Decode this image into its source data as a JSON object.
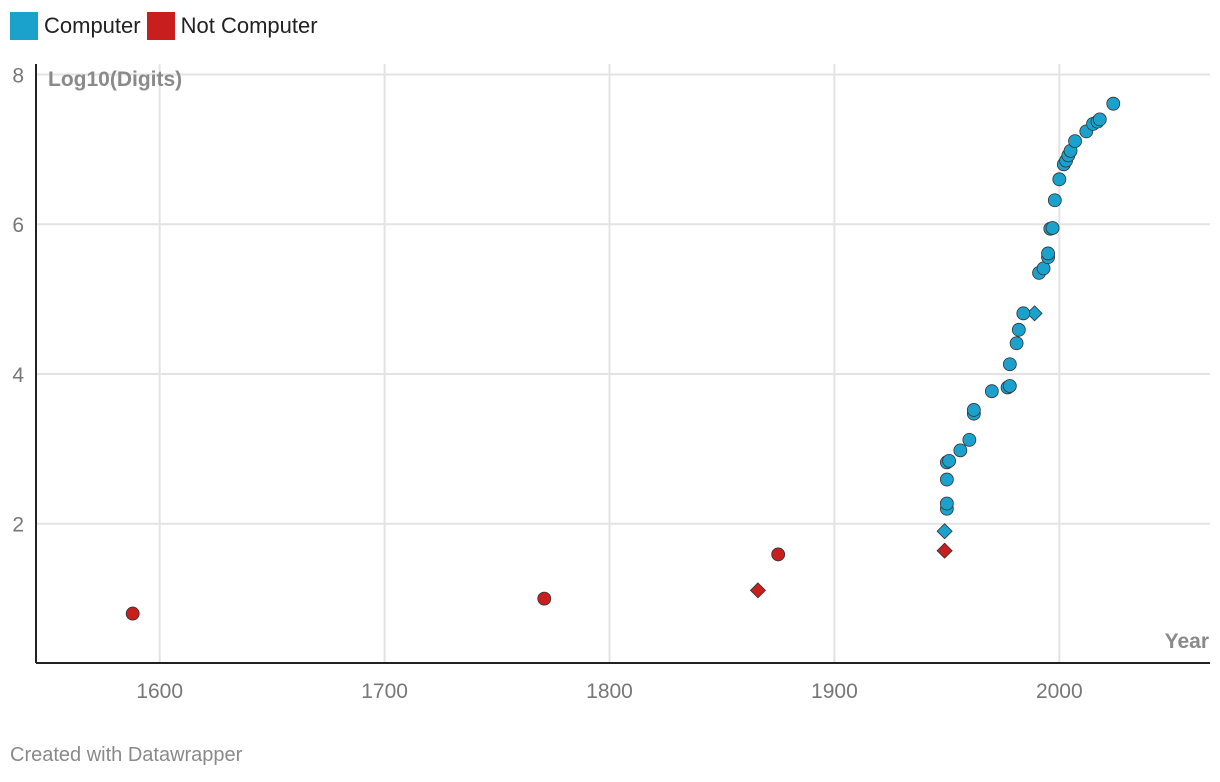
{
  "colors": {
    "computer": "#1aa1cc",
    "not_computer": "#c81e1e"
  },
  "legend": [
    {
      "label": "Computer",
      "color": "#1aa1cc"
    },
    {
      "label": "Not Computer",
      "color": "#c81e1e"
    }
  ],
  "footer": "Created with Datawrapper",
  "chart_data": {
    "type": "scatter",
    "title": "",
    "xlabel": "Year",
    "ylabel": "Log10(Digits)",
    "xlim": [
      1545,
      2067
    ],
    "ylim": [
      0.14,
      8.14
    ],
    "xticks": [
      1600,
      1700,
      1800,
      1900,
      2000
    ],
    "yticks": [
      2,
      4,
      6,
      8
    ],
    "grid": true,
    "legend_position": "top-left",
    "series": [
      {
        "name": "Computer",
        "color": "#1aa1cc",
        "points": [
          {
            "x": 1949,
            "y": 1.9,
            "marker": "diamond"
          },
          {
            "x": 1989,
            "y": 4.81,
            "marker": "diamond"
          },
          {
            "x": 1950,
            "y": 2.2,
            "marker": "circle"
          },
          {
            "x": 1950,
            "y": 2.27,
            "marker": "circle"
          },
          {
            "x": 1950,
            "y": 2.59,
            "marker": "circle"
          },
          {
            "x": 1950,
            "y": 2.82,
            "marker": "circle"
          },
          {
            "x": 1951,
            "y": 2.84,
            "marker": "circle"
          },
          {
            "x": 1956,
            "y": 2.98,
            "marker": "circle"
          },
          {
            "x": 1960,
            "y": 3.12,
            "marker": "circle"
          },
          {
            "x": 1962,
            "y": 3.47,
            "marker": "circle"
          },
          {
            "x": 1962,
            "y": 3.52,
            "marker": "circle"
          },
          {
            "x": 1970,
            "y": 3.77,
            "marker": "circle"
          },
          {
            "x": 1977,
            "y": 3.82,
            "marker": "circle"
          },
          {
            "x": 1978,
            "y": 3.84,
            "marker": "circle"
          },
          {
            "x": 1978,
            "y": 4.13,
            "marker": "circle"
          },
          {
            "x": 1981,
            "y": 4.41,
            "marker": "circle"
          },
          {
            "x": 1982,
            "y": 4.59,
            "marker": "circle"
          },
          {
            "x": 1984,
            "y": 4.81,
            "marker": "circle"
          },
          {
            "x": 1991,
            "y": 5.35,
            "marker": "circle"
          },
          {
            "x": 1993,
            "y": 5.41,
            "marker": "circle"
          },
          {
            "x": 1995,
            "y": 5.56,
            "marker": "circle"
          },
          {
            "x": 1995,
            "y": 5.61,
            "marker": "circle"
          },
          {
            "x": 1996,
            "y": 5.94,
            "marker": "circle"
          },
          {
            "x": 1997,
            "y": 5.95,
            "marker": "circle"
          },
          {
            "x": 1998,
            "y": 6.32,
            "marker": "circle"
          },
          {
            "x": 2000,
            "y": 6.6,
            "marker": "circle"
          },
          {
            "x": 2002,
            "y": 6.8,
            "marker": "circle"
          },
          {
            "x": 2003,
            "y": 6.85,
            "marker": "circle"
          },
          {
            "x": 2004,
            "y": 6.92,
            "marker": "circle"
          },
          {
            "x": 2005,
            "y": 6.98,
            "marker": "circle"
          },
          {
            "x": 2007,
            "y": 7.11,
            "marker": "circle"
          },
          {
            "x": 2012,
            "y": 7.24,
            "marker": "circle"
          },
          {
            "x": 2015,
            "y": 7.34,
            "marker": "circle"
          },
          {
            "x": 2017,
            "y": 7.37,
            "marker": "circle"
          },
          {
            "x": 2018,
            "y": 7.4,
            "marker": "circle"
          },
          {
            "x": 2024,
            "y": 7.61,
            "marker": "circle"
          }
        ]
      },
      {
        "name": "Not Computer",
        "color": "#c81e1e",
        "points": [
          {
            "x": 1588,
            "y": 0.8,
            "marker": "circle"
          },
          {
            "x": 1771,
            "y": 1.0,
            "marker": "circle"
          },
          {
            "x": 1866,
            "y": 1.11,
            "marker": "diamond"
          },
          {
            "x": 1875,
            "y": 1.59,
            "marker": "circle"
          },
          {
            "x": 1949,
            "y": 1.64,
            "marker": "diamond"
          }
        ]
      }
    ]
  }
}
